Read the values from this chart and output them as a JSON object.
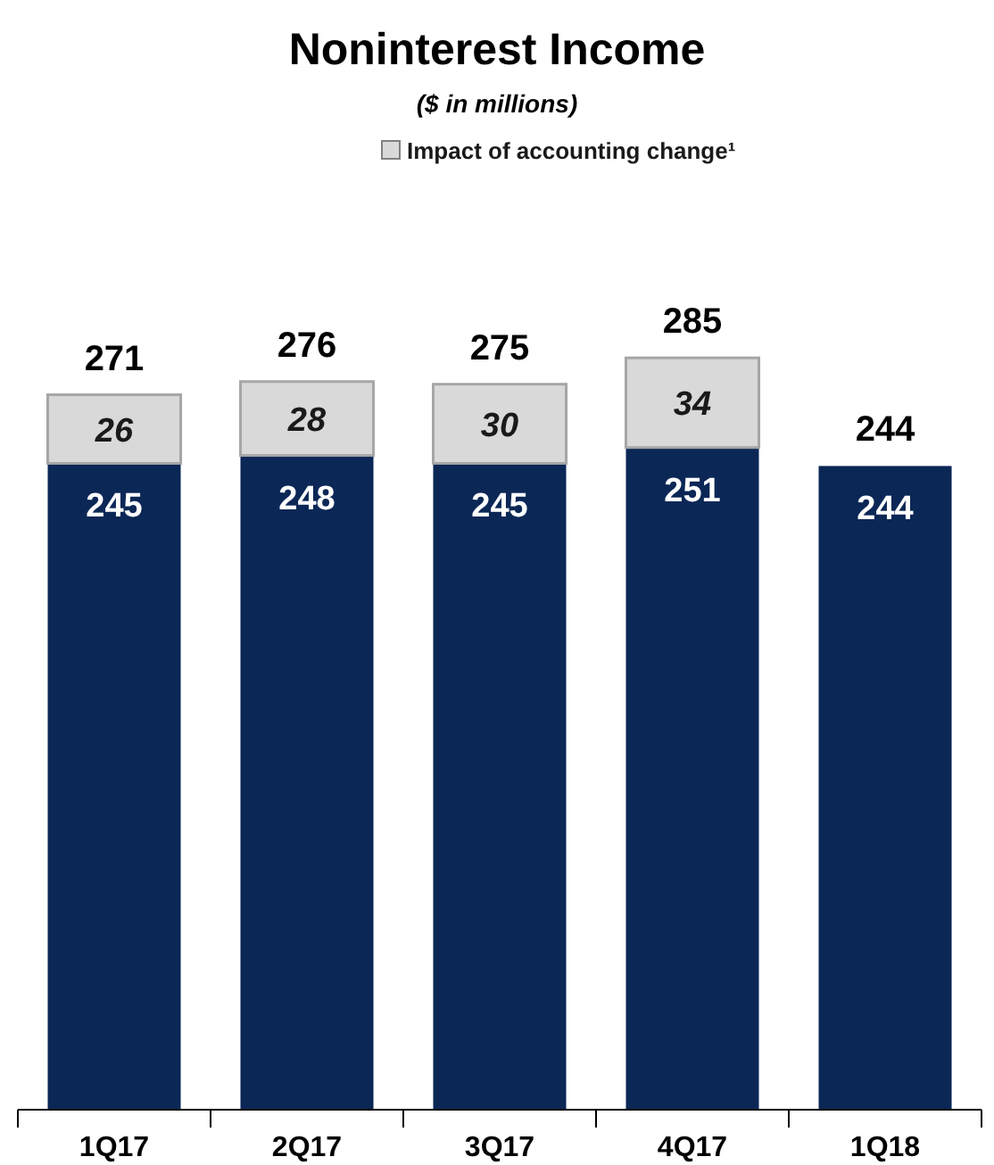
{
  "chart_data": {
    "type": "bar",
    "title": "Noninterest Income",
    "subtitle": "($ in millions)",
    "categories": [
      "1Q17",
      "2Q17",
      "3Q17",
      "4Q17",
      "1Q18"
    ],
    "stacked": true,
    "data_labels": true,
    "legend": "top",
    "series": [
      {
        "color": "#0b2756",
        "values": [
          245,
          248,
          245,
          251,
          244
        ]
      },
      {
        "name": "Impact of accounting change¹",
        "color": "#d9d9d9",
        "values": [
          26,
          28,
          30,
          34,
          null
        ]
      }
    ],
    "totals": [
      "271",
      "276",
      "275",
      "285",
      "244"
    ]
  }
}
